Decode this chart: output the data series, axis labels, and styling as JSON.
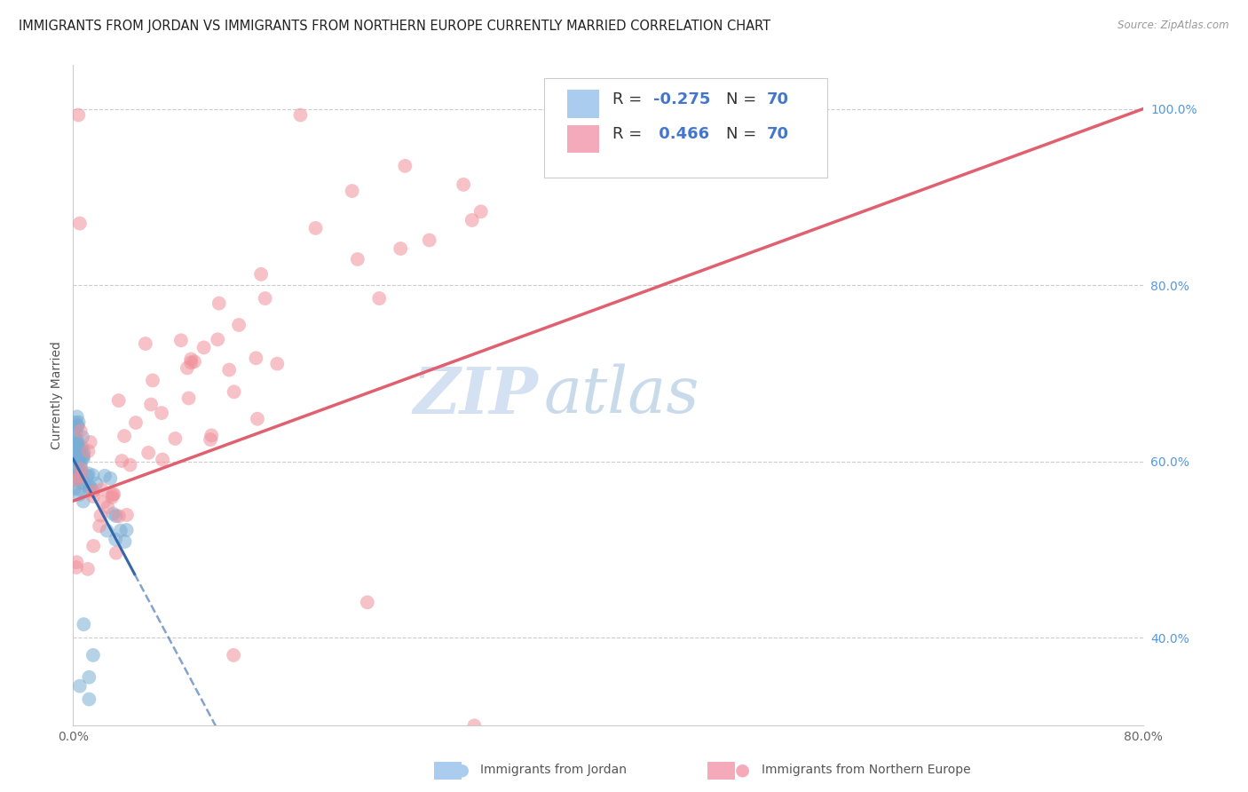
{
  "title": "IMMIGRANTS FROM JORDAN VS IMMIGRANTS FROM NORTHERN EUROPE CURRENTLY MARRIED CORRELATION CHART",
  "source": "Source: ZipAtlas.com",
  "ylabel": "Currently Married",
  "watermark_zip": "ZIP",
  "watermark_atlas": "atlas",
  "xlim": [
    0.0,
    0.8
  ],
  "ylim": [
    0.3,
    1.05
  ],
  "jordan_color": "#7aadd4",
  "northern_color": "#f0909a",
  "jordan_trend_color": "#3366aa",
  "northern_trend_color": "#e06070",
  "grid_color": "#cccccc",
  "background_color": "#ffffff",
  "title_fontsize": 10.5,
  "axis_label_fontsize": 10,
  "tick_fontsize": 10,
  "right_tick_color": "#5599dd",
  "legend_blue_color": "#aaccee",
  "legend_pink_color": "#f4aabb",
  "r_jordan": "-0.275",
  "r_northern": "0.466",
  "n_jordan": "70",
  "n_northern": "70"
}
